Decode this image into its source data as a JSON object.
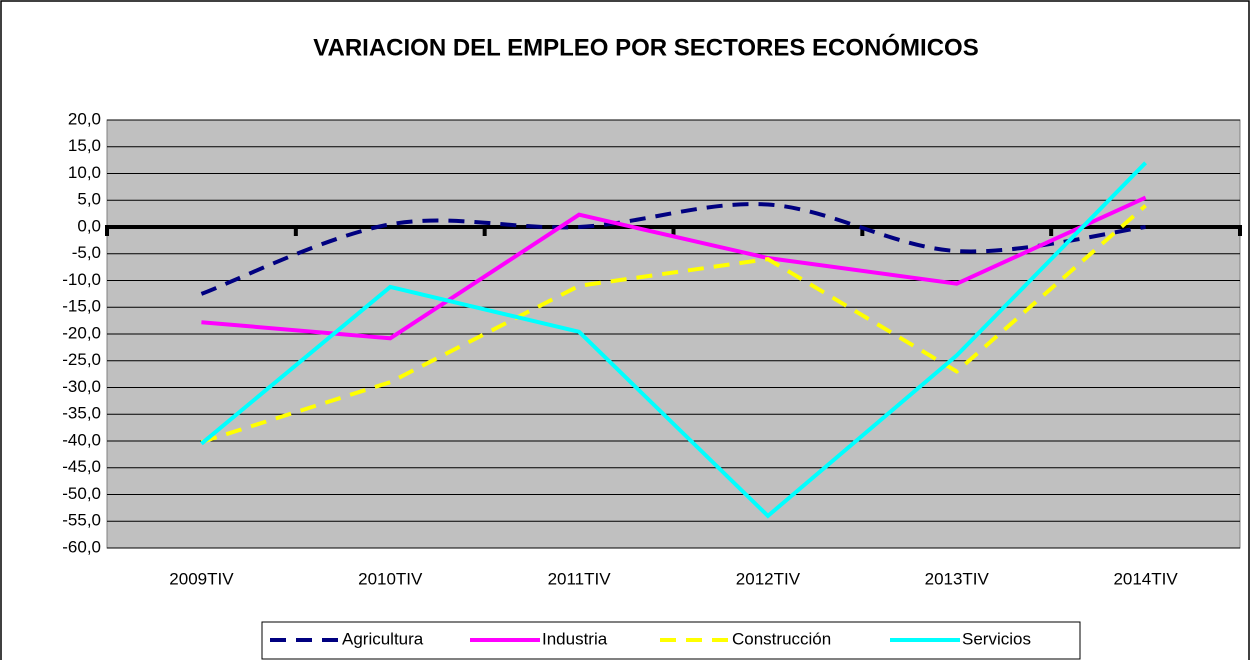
{
  "chart_data": {
    "type": "line",
    "title": "VARIACION DEL EMPLEO POR SECTORES ECONÓMICOS",
    "categories": [
      "2009TIV",
      "2010TIV",
      "2011TIV",
      "2012TIV",
      "2013TIV",
      "2014TIV"
    ],
    "series": [
      {
        "name": "Agricultura",
        "color": "#000080",
        "dash": true,
        "smooth": true,
        "values": [
          -12.5,
          0.5,
          0,
          4.2,
          -4.5,
          0
        ]
      },
      {
        "name": "Industria",
        "color": "#ff00ff",
        "dash": false,
        "smooth": false,
        "values": [
          -17.8,
          -20.8,
          2.3,
          -5.8,
          -10.6,
          5.5
        ]
      },
      {
        "name": "Construcción",
        "color": "#ffff00",
        "dash": true,
        "smooth": false,
        "values": [
          -40.2,
          -29.0,
          -11.0,
          -6.0,
          -27.0,
          4.0
        ]
      },
      {
        "name": "Servicios",
        "color": "#00ffff",
        "dash": false,
        "smooth": false,
        "values": [
          -40.5,
          -11.2,
          -19.6,
          -54.0,
          -24.0,
          12.0
        ]
      }
    ],
    "ylim": [
      -60,
      20
    ],
    "yticks": [
      {
        "value": -60,
        "label": "-60,0"
      },
      {
        "value": -55,
        "label": "-55,0"
      },
      {
        "value": -50,
        "label": "-50,0"
      },
      {
        "value": -45,
        "label": "-45,0"
      },
      {
        "value": -40,
        "label": "-40,0"
      },
      {
        "value": -35,
        "label": "-35,0"
      },
      {
        "value": -30,
        "label": "-30,0"
      },
      {
        "value": -25,
        "label": "-25,0"
      },
      {
        "value": -20,
        "label": "-20,0"
      },
      {
        "value": -15,
        "label": "-15,0"
      },
      {
        "value": -10,
        "label": "-10,0"
      },
      {
        "value": -5,
        "label": "-5,0"
      },
      {
        "value": 0,
        "label": "0,0"
      },
      {
        "value": 5,
        "label": "5,0"
      },
      {
        "value": 10,
        "label": "10,0"
      },
      {
        "value": 15,
        "label": "15,0"
      },
      {
        "value": 20,
        "label": "20,0"
      }
    ],
    "grid": true,
    "legend": "bottom"
  }
}
